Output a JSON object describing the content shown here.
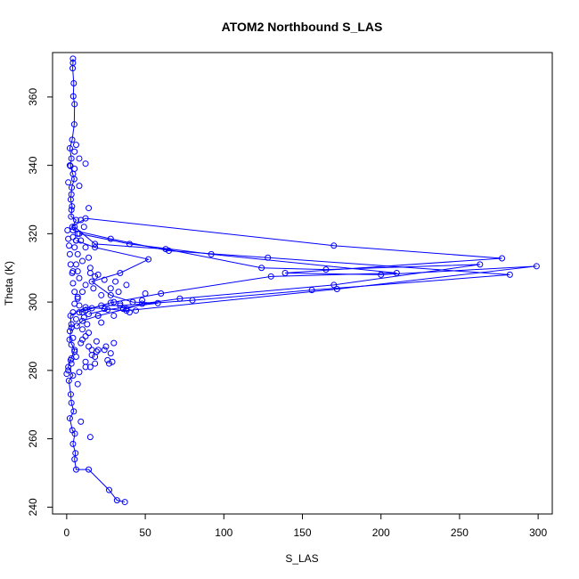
{
  "chart_data": {
    "type": "scatter",
    "title": "ATOM2 Northbound S_LAS",
    "xlabel": "S_LAS",
    "ylabel": "Theta (K)",
    "xlim": [
      -9,
      309
    ],
    "ylim": [
      238,
      373
    ],
    "x_ticks": [
      0,
      50,
      100,
      150,
      200,
      250,
      300
    ],
    "y_ticks": [
      240,
      260,
      280,
      300,
      320,
      340,
      360
    ],
    "x_tick_labels": [
      "0",
      "50",
      "100",
      "150",
      "200",
      "250",
      "300"
    ],
    "y_tick_labels": [
      "240",
      "260",
      "280",
      "300",
      "320",
      "340",
      "360"
    ],
    "grid": false,
    "legend": "none",
    "series_color": "#0000ff",
    "series": [
      {
        "style": "points-and-lines",
        "points": [
          [
            4,
            371.2
          ],
          [
            4,
            370.0
          ],
          [
            3.8,
            368.4
          ],
          [
            4.5,
            364.0
          ],
          [
            4.2,
            360.2
          ],
          [
            5.0,
            357.9
          ],
          [
            4.8,
            352.0
          ],
          [
            3.5,
            347.5
          ],
          [
            2.0,
            345.0
          ],
          [
            3.0,
            342.0
          ],
          [
            2.4,
            339.8
          ],
          [
            4.8,
            336.0
          ],
          [
            3.2,
            333.5
          ],
          [
            2.6,
            330.0
          ],
          [
            3.4,
            328.0
          ],
          [
            2.8,
            325.0
          ],
          [
            6.0,
            324.0
          ],
          [
            3.6,
            322.0
          ],
          [
            12.0,
            324.5
          ],
          [
            170.0,
            316.5
          ],
          [
            277.0,
            312.8
          ],
          [
            139.0,
            308.5
          ],
          [
            200.0,
            308.0
          ],
          [
            299.0,
            310.5
          ],
          [
            172.0,
            303.8
          ],
          [
            38.0,
            297.5
          ],
          [
            12.0,
            298.5
          ],
          [
            2.4,
            296.0
          ],
          [
            3.0,
            292.5
          ],
          [
            1.8,
            289.0
          ],
          [
            5.0,
            286.0
          ],
          [
            2.5,
            283.0
          ],
          [
            1.0,
            281.0
          ],
          [
            4.0,
            278.5
          ],
          [
            1.4,
            277.0
          ],
          [
            2.6,
            273.0
          ],
          [
            3.0,
            270.5
          ],
          [
            4.5,
            268.0
          ],
          [
            2.0,
            266.0
          ],
          [
            3.6,
            262.5
          ],
          [
            5.2,
            261.5
          ],
          [
            4.0,
            258.5
          ],
          [
            5.6,
            255.8
          ],
          [
            5.0,
            254.0
          ],
          [
            6.0,
            251.0
          ],
          [
            14.0,
            251.0
          ],
          [
            27.0,
            245.0
          ],
          [
            32.0,
            242.0
          ],
          [
            37.0,
            241.5
          ]
        ]
      },
      {
        "style": "points-and-lines",
        "points": [
          [
            5.0,
            322.0
          ],
          [
            18.0,
            317.0
          ],
          [
            63.0,
            315.5
          ],
          [
            124.0,
            310.0
          ],
          [
            165.0,
            309.5
          ],
          [
            263.0,
            311.0
          ],
          [
            170.0,
            305.0
          ],
          [
            72.0,
            301.0
          ],
          [
            48.0,
            299.5
          ],
          [
            38.0,
            298.0
          ],
          [
            20.0,
            296.0
          ],
          [
            10.0,
            294.5
          ],
          [
            6.5,
            293.0
          ]
        ]
      },
      {
        "style": "points-and-lines",
        "points": [
          [
            4.0,
            321.0
          ],
          [
            28.0,
            318.5
          ],
          [
            65.0,
            315.0
          ],
          [
            128.0,
            313.0
          ],
          [
            282.0,
            308.0
          ],
          [
            156.0,
            303.5
          ],
          [
            80.0,
            300.5
          ],
          [
            34.0,
            299.0
          ],
          [
            22.0,
            299.0
          ],
          [
            12.0,
            297.5
          ]
        ]
      },
      {
        "style": "points-and-lines",
        "points": [
          [
            8.0,
            320.0
          ],
          [
            40.0,
            317.0
          ],
          [
            92.0,
            314.0
          ],
          [
            210.0,
            308.5
          ],
          [
            130.0,
            307.5
          ],
          [
            60.0,
            302.5
          ],
          [
            28.0,
            299.8
          ],
          [
            16.0,
            298.2
          ],
          [
            8.0,
            297.0
          ]
        ]
      },
      {
        "style": "points-and-lines",
        "points": [
          [
            6.0,
            318.0
          ],
          [
            18.0,
            316.0
          ],
          [
            52.0,
            312.5
          ],
          [
            34.0,
            308.5
          ],
          [
            16.0,
            306.0
          ],
          [
            28.0,
            302.0
          ],
          [
            42.0,
            300.0
          ],
          [
            58.0,
            299.7
          ],
          [
            26.0,
            297.8
          ],
          [
            14.0,
            296.5
          ]
        ]
      },
      {
        "style": "points-only",
        "points": [
          [
            0.5,
            321.0
          ],
          [
            1.0,
            318.5
          ],
          [
            1.5,
            316.5
          ],
          [
            2.0,
            314.0
          ],
          [
            2.5,
            311.0
          ],
          [
            3.5,
            308.5
          ],
          [
            4.0,
            305.5
          ],
          [
            5.0,
            303.0
          ],
          [
            7.0,
            301.0
          ],
          [
            8.0,
            299.0
          ],
          [
            10.0,
            297.0
          ],
          [
            11.0,
            295.5
          ],
          [
            13.0,
            293.5
          ],
          [
            14.0,
            291.0
          ],
          [
            10.0,
            289.0
          ],
          [
            14.0,
            287.0
          ],
          [
            16.0,
            286.0
          ],
          [
            18.0,
            284.0
          ],
          [
            20.0,
            286.0
          ],
          [
            24.0,
            286.0
          ],
          [
            28.0,
            285.0
          ],
          [
            26.0,
            283.0
          ],
          [
            30.0,
            288.0
          ],
          [
            18.0,
            282.0
          ],
          [
            12.0,
            281.0
          ],
          [
            8.0,
            279.5
          ],
          [
            3.0,
            283.5
          ],
          [
            1.0,
            280.0
          ],
          [
            0.0,
            279.0
          ],
          [
            7.0,
            276.0
          ],
          [
            9.0,
            265.0
          ],
          [
            15.0,
            260.5
          ],
          [
            12.0,
            282.5
          ],
          [
            20.0,
            296.0
          ],
          [
            22.0,
            294.0
          ],
          [
            24.0,
            298.0
          ],
          [
            28.0,
            304.0
          ],
          [
            31.0,
            306.0
          ],
          [
            38.0,
            305.0
          ],
          [
            33.0,
            303.0
          ],
          [
            30.0,
            300.0
          ],
          [
            34.0,
            299.5
          ],
          [
            36.0,
            298.0
          ],
          [
            40.0,
            297.0
          ],
          [
            44.0,
            297.5
          ],
          [
            48.0,
            300.5
          ],
          [
            50.0,
            302.5
          ],
          [
            30.0,
            296.0
          ],
          [
            22.0,
            302.0
          ],
          [
            24.0,
            306.5
          ],
          [
            20.0,
            308.0
          ],
          [
            15.0,
            310.0
          ],
          [
            10.0,
            312.0
          ],
          [
            7.0,
            314.0
          ],
          [
            5.0,
            316.0
          ],
          [
            4.0,
            319.0
          ],
          [
            3.0,
            327.0
          ],
          [
            14.0,
            327.5
          ],
          [
            9.0,
            324.0
          ],
          [
            11.0,
            322.0
          ],
          [
            7.0,
            320.0
          ],
          [
            6.0,
            318.0
          ],
          [
            12.0,
            316.0
          ],
          [
            14.0,
            313.0
          ],
          [
            6.0,
            311.0
          ],
          [
            4.0,
            309.0
          ],
          [
            8.0,
            307.0
          ],
          [
            12.0,
            305.0
          ],
          [
            10.0,
            303.0
          ],
          [
            7.0,
            301.5
          ],
          [
            5.0,
            299.5
          ],
          [
            4.0,
            297.0
          ],
          [
            6.0,
            295.0
          ],
          [
            3.0,
            293.5
          ],
          [
            2.0,
            291.5
          ],
          [
            4.0,
            289.5
          ],
          [
            3.0,
            287.5
          ],
          [
            5.0,
            285.5
          ],
          [
            6.0,
            284.0
          ],
          [
            3.0,
            282.0
          ],
          [
            8.0,
            342.0
          ],
          [
            5.0,
            344.0
          ],
          [
            6.0,
            346.0
          ],
          [
            2.0,
            340.0
          ],
          [
            4.0,
            337.5
          ],
          [
            1.0,
            335.0
          ],
          [
            3.0,
            331.5
          ],
          [
            12.0,
            340.5
          ],
          [
            8.0,
            334.0
          ],
          [
            5.0,
            339.0
          ],
          [
            9.0,
            318.0
          ],
          [
            7.0,
            309.0
          ],
          [
            15.0,
            308.5
          ],
          [
            18.0,
            307.5
          ],
          [
            17.0,
            304.0
          ],
          [
            9.0,
            288.0
          ],
          [
            15.0,
            281.0
          ],
          [
            19.0,
            285.5
          ],
          [
            27.0,
            282.0
          ],
          [
            25.0,
            287.0
          ],
          [
            29.0,
            282.5
          ],
          [
            16.0,
            284.5
          ],
          [
            19.0,
            288.5
          ],
          [
            12.0,
            290.0
          ],
          [
            10.0,
            292.0
          ]
        ]
      }
    ]
  }
}
